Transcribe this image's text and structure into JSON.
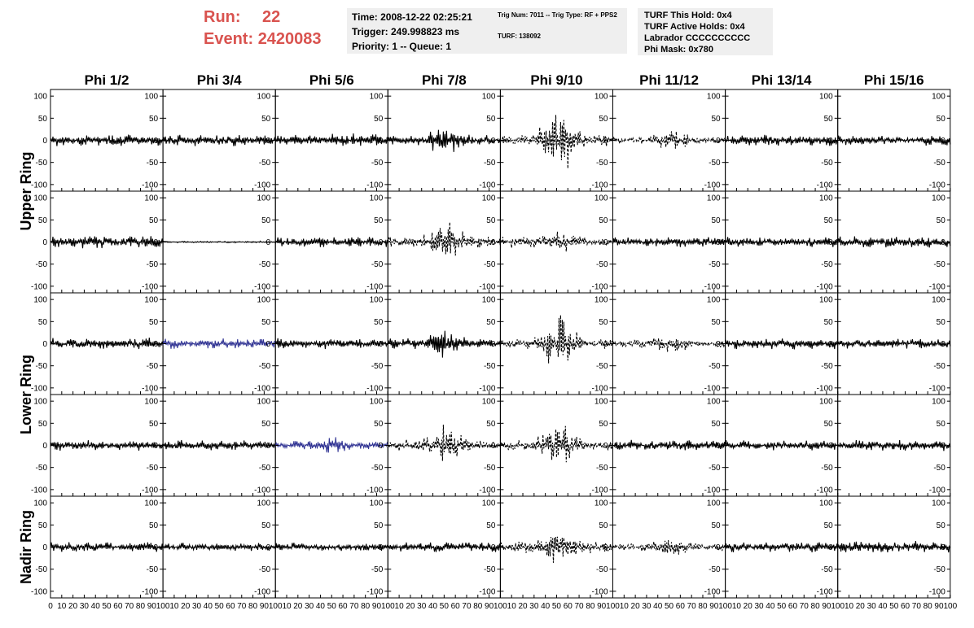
{
  "header": {
    "run_label": "Run:",
    "run_value": "22",
    "event_label": "Event:",
    "event_value": "2420083",
    "colors": {
      "header_red": "#d9534f",
      "panel_gray": "#efefef"
    }
  },
  "info_time": {
    "time": "Time: 2008-12-22 02:25:21",
    "trigger": "Trigger: 249.998823 ms",
    "priority": "Priority: 1 -- Queue: 1"
  },
  "info_trig": {
    "trig": "Trig Num: 7011 -- Trig Type: RF + PPS2",
    "turf": "TURF: 138092"
  },
  "info_turf": {
    "this_hold": "TURF This Hold: 0x4",
    "active_holds": "TURF Active Holds: 0x4",
    "labrador": "Labrador CCCCCCCCCC",
    "phi_mask": "Phi Mask: 0x780"
  },
  "chart_data": {
    "type": "line",
    "columns": [
      "Phi 1/2",
      "Phi 3/4",
      "Phi 5/6",
      "Phi 7/8",
      "Phi 9/10",
      "Phi 11/12",
      "Phi 13/14",
      "Phi 15/16"
    ],
    "ring_labels": [
      "Upper Ring",
      "Lower Ring",
      "Nadir Ring"
    ],
    "rows": 5,
    "ylim": [
      -115,
      115
    ],
    "yticks": [
      100,
      50,
      0,
      -50,
      -100
    ],
    "xlim": [
      0,
      100
    ],
    "xtick_labels_first": [
      "0",
      "10",
      "20",
      "30",
      "40",
      "50",
      "60",
      "70",
      "80",
      "90",
      "100"
    ],
    "xtick_labels_inner": [
      "10",
      "20",
      "30",
      "40",
      "50",
      "60",
      "70",
      "80",
      "90",
      "100"
    ],
    "colors": {
      "trace": "#000000",
      "highlight": "#2e3192"
    },
    "panels": [
      {
        "row": 0,
        "col": 0,
        "style": "solid",
        "amp": 14,
        "burst": 0
      },
      {
        "row": 0,
        "col": 1,
        "style": "solid",
        "amp": 14,
        "burst": 0
      },
      {
        "row": 0,
        "col": 2,
        "style": "solid",
        "amp": 16,
        "burst": 0
      },
      {
        "row": 0,
        "col": 3,
        "style": "solid",
        "amp": 12,
        "burst": 32
      },
      {
        "row": 0,
        "col": 4,
        "style": "dashed",
        "amp": 14,
        "burst": 70
      },
      {
        "row": 0,
        "col": 5,
        "style": "dashed",
        "amp": 8,
        "burst": 18
      },
      {
        "row": 0,
        "col": 6,
        "style": "solid",
        "amp": 14,
        "burst": 0
      },
      {
        "row": 0,
        "col": 7,
        "style": "solid",
        "amp": 12,
        "burst": 0
      },
      {
        "row": 1,
        "col": 0,
        "style": "solid",
        "amp": 16,
        "burst": 0
      },
      {
        "row": 1,
        "col": 1,
        "style": "solid",
        "amp": 2,
        "burst": 0
      },
      {
        "row": 1,
        "col": 2,
        "style": "solid",
        "amp": 13,
        "burst": 0
      },
      {
        "row": 1,
        "col": 3,
        "style": "dashed",
        "amp": 14,
        "burst": 38
      },
      {
        "row": 1,
        "col": 4,
        "style": "dashed",
        "amp": 14,
        "burst": 12
      },
      {
        "row": 1,
        "col": 5,
        "style": "solid",
        "amp": 12,
        "burst": 0
      },
      {
        "row": 1,
        "col": 6,
        "style": "solid",
        "amp": 13,
        "burst": 0
      },
      {
        "row": 1,
        "col": 7,
        "style": "solid",
        "amp": 14,
        "burst": 0
      },
      {
        "row": 2,
        "col": 0,
        "style": "solid",
        "amp": 14,
        "burst": 0
      },
      {
        "row": 2,
        "col": 1,
        "style": "blue",
        "amp": 12,
        "burst": 0
      },
      {
        "row": 2,
        "col": 2,
        "style": "solid",
        "amp": 13,
        "burst": 0
      },
      {
        "row": 2,
        "col": 3,
        "style": "solid",
        "amp": 12,
        "burst": 30
      },
      {
        "row": 2,
        "col": 4,
        "style": "dashed",
        "amp": 12,
        "burst": 58
      },
      {
        "row": 2,
        "col": 5,
        "style": "dashed",
        "amp": 9,
        "burst": 16
      },
      {
        "row": 2,
        "col": 6,
        "style": "solid",
        "amp": 13,
        "burst": 0
      },
      {
        "row": 2,
        "col": 7,
        "style": "solid",
        "amp": 12,
        "burst": 0
      },
      {
        "row": 3,
        "col": 0,
        "style": "solid",
        "amp": 12,
        "burst": 0
      },
      {
        "row": 3,
        "col": 1,
        "style": "solid",
        "amp": 12,
        "burst": 0
      },
      {
        "row": 3,
        "col": 2,
        "style": "blue",
        "amp": 10,
        "burst": 12
      },
      {
        "row": 3,
        "col": 3,
        "style": "dashed",
        "amp": 14,
        "burst": 38
      },
      {
        "row": 3,
        "col": 4,
        "style": "dashed",
        "amp": 12,
        "burst": 60
      },
      {
        "row": 3,
        "col": 5,
        "style": "solid",
        "amp": 13,
        "burst": 0
      },
      {
        "row": 3,
        "col": 6,
        "style": "solid",
        "amp": 12,
        "burst": 0
      },
      {
        "row": 3,
        "col": 7,
        "style": "solid",
        "amp": 13,
        "burst": 0
      },
      {
        "row": 4,
        "col": 0,
        "style": "solid",
        "amp": 12,
        "burst": 0
      },
      {
        "row": 4,
        "col": 1,
        "style": "solid",
        "amp": 10,
        "burst": 0
      },
      {
        "row": 4,
        "col": 2,
        "style": "solid",
        "amp": 11,
        "burst": 0
      },
      {
        "row": 4,
        "col": 3,
        "style": "solid",
        "amp": 12,
        "burst": 0
      },
      {
        "row": 4,
        "col": 4,
        "style": "dashed",
        "amp": 14,
        "burst": 36
      },
      {
        "row": 4,
        "col": 5,
        "style": "dashed",
        "amp": 9,
        "burst": 14
      },
      {
        "row": 4,
        "col": 6,
        "style": "solid",
        "amp": 12,
        "burst": 0
      },
      {
        "row": 4,
        "col": 7,
        "style": "solid",
        "amp": 15,
        "burst": 0
      }
    ]
  }
}
